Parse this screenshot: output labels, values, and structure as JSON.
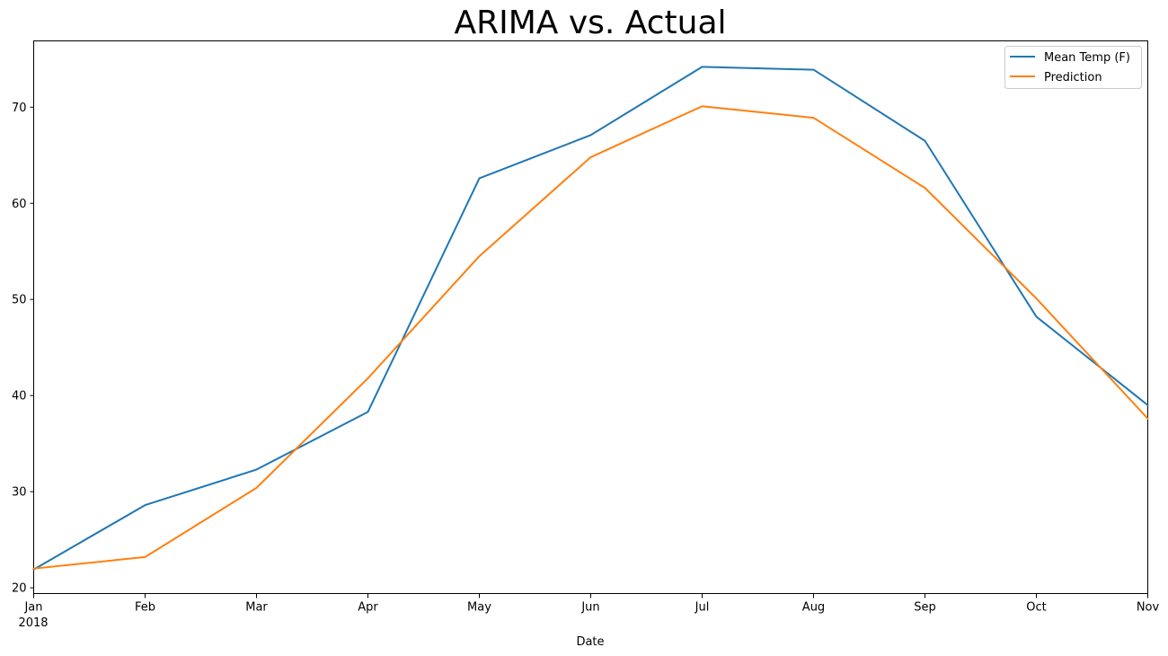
{
  "chart_data": {
    "type": "line",
    "title": "ARIMA vs. Actual",
    "xlabel": "Date",
    "ylabel": "",
    "categories": [
      "Jan",
      "Feb",
      "Mar",
      "Apr",
      "May",
      "Jun",
      "Jul",
      "Aug",
      "Sep",
      "Oct",
      "Nov"
    ],
    "x_year_label": "2018",
    "ylim": [
      19.4,
      76.9
    ],
    "yticks": [
      20,
      30,
      40,
      50,
      60,
      70
    ],
    "grid": false,
    "legend_position": "top-right",
    "series": [
      {
        "name": "Mean Temp (F)",
        "color": "#1f77b4",
        "values": [
          21.9,
          28.6,
          32.3,
          38.3,
          62.6,
          67.1,
          74.2,
          73.9,
          66.5,
          48.2,
          39.0
        ]
      },
      {
        "name": "Prediction",
        "color": "#ff7f0e",
        "values": [
          22.0,
          23.2,
          30.4,
          41.8,
          54.5,
          64.8,
          70.1,
          68.9,
          61.6,
          50.1,
          37.6
        ]
      }
    ]
  }
}
